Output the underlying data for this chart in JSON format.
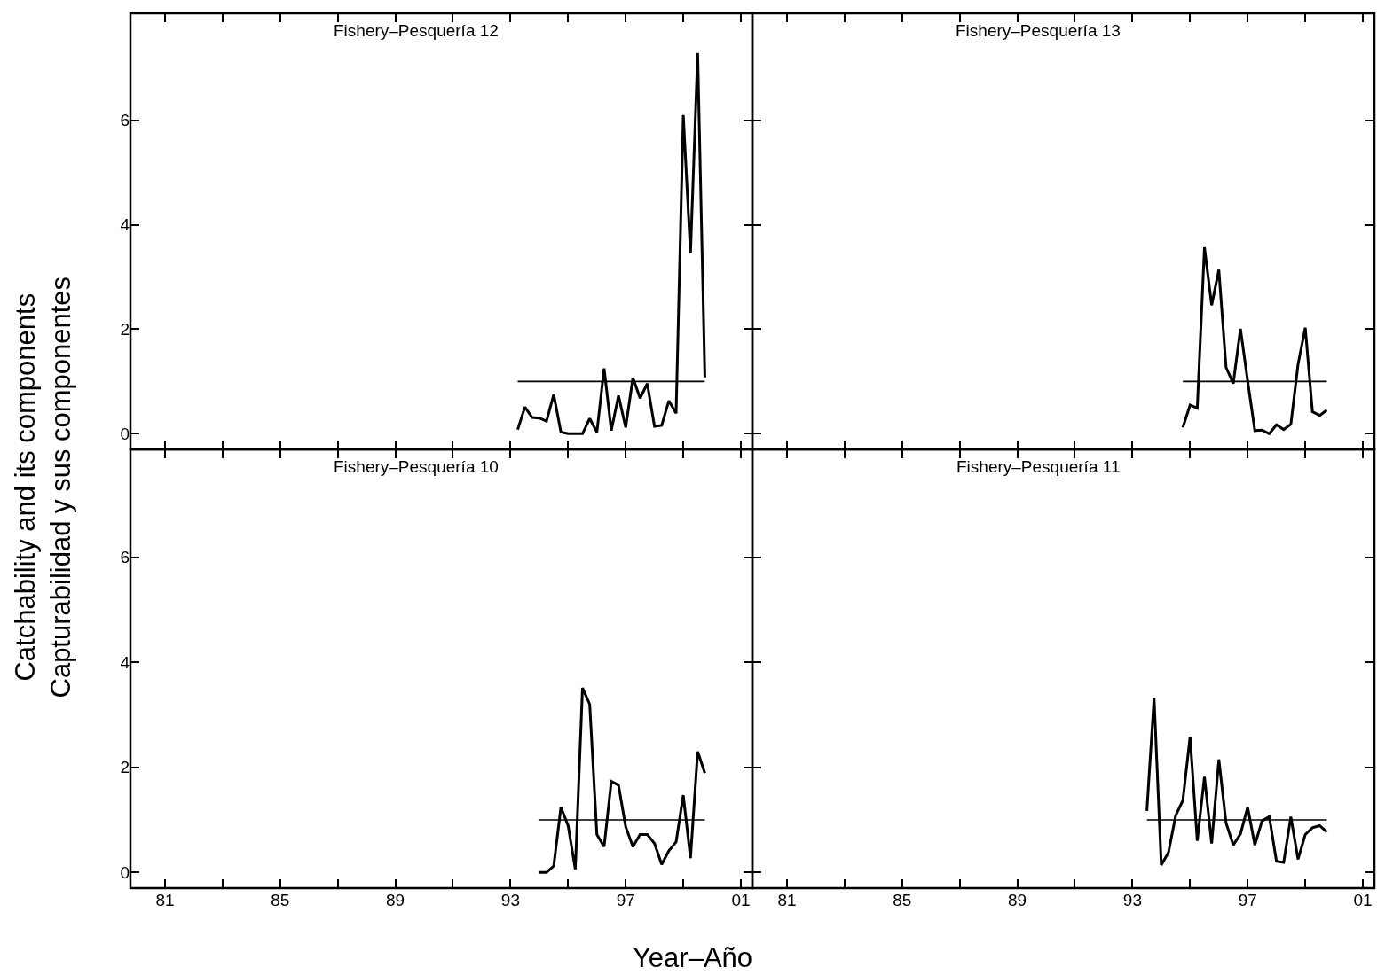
{
  "chart_data": [
    {
      "type": "line",
      "title": "Fishery–Pesquería 12",
      "ylabel": "Catchability and its components\nCapturabilidad y sus componentes",
      "tick_labels": "y",
      "xlim": [
        1979.8,
        2001.4
      ],
      "ylim": [
        -0.3,
        8.05
      ],
      "xticks": [
        {
          "value": 1981,
          "label": null
        },
        {
          "value": 1983,
          "label": null
        },
        {
          "value": 1985,
          "label": null
        },
        {
          "value": 1987,
          "label": null
        },
        {
          "value": 1989,
          "label": null
        },
        {
          "value": 1991,
          "label": null
        },
        {
          "value": 1993,
          "label": null
        },
        {
          "value": 1995,
          "label": null
        },
        {
          "value": 1997,
          "label": null
        },
        {
          "value": 1999,
          "label": null
        },
        {
          "value": 2001,
          "label": null
        }
      ],
      "yticks": [
        0,
        2,
        4,
        6
      ],
      "series": [
        {
          "color": "#000000",
          "x": [
            1993.25,
            1993.5,
            1993.75,
            1994.0,
            1994.25,
            1994.5,
            1994.75,
            1995.0,
            1995.25,
            1995.5,
            1995.75,
            1996.0,
            1996.25,
            1996.5,
            1996.75,
            1997.0,
            1997.25,
            1997.5,
            1997.75,
            1998.0,
            1998.25,
            1998.5,
            1998.75,
            1999.0,
            1999.25,
            1999.5,
            1999.75
          ],
          "values": [
            0.08,
            0.51,
            0.31,
            0.3,
            0.24,
            0.75,
            0.03,
            0.0,
            0.0,
            0.0,
            0.29,
            0.03,
            1.25,
            0.06,
            0.73,
            0.12,
            1.07,
            0.68,
            0.96,
            0.14,
            0.16,
            0.63,
            0.39,
            6.1,
            3.45,
            7.29,
            1.08
          ]
        },
        {
          "type": "line",
          "color": "#000000",
          "x": [
            1993.25,
            1999.75
          ],
          "values": [
            1,
            1
          ]
        }
      ]
    },
    {
      "type": "line",
      "title": "Fishery–Pesquería 13",
      "tick_labels": false,
      "xlim": [
        1979.8,
        2001.4
      ],
      "ylim": [
        -0.3,
        8.05
      ],
      "xticks": [
        {
          "value": 1981,
          "label": null
        },
        {
          "value": 1983,
          "label": null
        },
        {
          "value": 1985,
          "label": null
        },
        {
          "value": 1987,
          "label": null
        },
        {
          "value": 1989,
          "label": null
        },
        {
          "value": 1991,
          "label": null
        },
        {
          "value": 1993,
          "label": null
        },
        {
          "value": 1995,
          "label": null
        },
        {
          "value": 1997,
          "label": null
        },
        {
          "value": 1999,
          "label": null
        },
        {
          "value": 2001,
          "label": null
        }
      ],
      "yticks": [
        {
          "value": 0,
          "label": null
        },
        {
          "value": 2,
          "label": null
        },
        {
          "value": 4,
          "label": null
        },
        {
          "value": 6,
          "label": null
        }
      ],
      "series": [
        {
          "color": "#000000",
          "x": [
            1994.75,
            1995.0,
            1995.25,
            1995.5,
            1995.75,
            1996.0,
            1996.25,
            1996.5,
            1996.75,
            1997.0,
            1997.25,
            1997.5,
            1997.75,
            1998.0,
            1998.25,
            1998.5,
            1998.75,
            1999.0,
            1999.25,
            1999.5,
            1999.75
          ],
          "values": [
            0.12,
            0.55,
            0.49,
            3.57,
            2.46,
            3.14,
            1.27,
            0.96,
            2.01,
            1.01,
            0.06,
            0.07,
            0.0,
            0.17,
            0.08,
            0.18,
            1.33,
            2.03,
            0.42,
            0.35,
            0.45
          ]
        },
        {
          "type": "line",
          "color": "#000000",
          "x": [
            1994.75,
            1999.75
          ],
          "values": [
            1,
            1
          ]
        }
      ]
    },
    {
      "type": "line",
      "title": "Fishery–Pesquería 10",
      "xlabel": "Year–Año",
      "xlim": [
        1979.8,
        2001.4
      ],
      "ylim": [
        -0.3,
        8.05
      ],
      "xticks": [
        {
          "value": 1981,
          "label": "81"
        },
        {
          "value": 1983,
          "label": null
        },
        {
          "value": 1985,
          "label": "85"
        },
        {
          "value": 1987,
          "label": null
        },
        {
          "value": 1989,
          "label": "89"
        },
        {
          "value": 1991,
          "label": null
        },
        {
          "value": 1993,
          "label": "93"
        },
        {
          "value": 1995,
          "label": null
        },
        {
          "value": 1997,
          "label": "97"
        },
        {
          "value": 1999,
          "label": null
        },
        {
          "value": 2001,
          "label": "01"
        }
      ],
      "yticks": [
        0,
        2,
        4,
        6
      ],
      "series": [
        {
          "color": "#000000",
          "x": [
            1994.0,
            1994.25,
            1994.5,
            1994.75,
            1995.0,
            1995.25,
            1995.5,
            1995.75,
            1996.0,
            1996.25,
            1996.5,
            1996.75,
            1997.0,
            1997.25,
            1997.5,
            1997.75,
            1998.0,
            1998.25,
            1998.5,
            1998.75,
            1999.0,
            1999.25,
            1999.5,
            1999.75
          ],
          "values": [
            0.0,
            0.0,
            0.12,
            1.24,
            0.89,
            0.06,
            3.51,
            3.2,
            0.72,
            0.49,
            1.73,
            1.66,
            0.87,
            0.49,
            0.72,
            0.72,
            0.55,
            0.15,
            0.41,
            0.58,
            1.47,
            0.27,
            2.3,
            1.89
          ]
        },
        {
          "type": "line",
          "color": "#000000",
          "x": [
            1994.0,
            1999.75
          ],
          "values": [
            1,
            1
          ]
        }
      ]
    },
    {
      "type": "line",
      "title": "Fishery–Pesquería 11",
      "tick_labels": "x",
      "xlim": [
        1979.8,
        2001.4
      ],
      "ylim": [
        -0.3,
        8.05
      ],
      "xticks": [
        {
          "value": 1981,
          "label": "81"
        },
        {
          "value": 1983,
          "label": null
        },
        {
          "value": 1985,
          "label": "85"
        },
        {
          "value": 1987,
          "label": null
        },
        {
          "value": 1989,
          "label": "89"
        },
        {
          "value": 1991,
          "label": null
        },
        {
          "value": 1993,
          "label": "93"
        },
        {
          "value": 1995,
          "label": null
        },
        {
          "value": 1997,
          "label": "97"
        },
        {
          "value": 1999,
          "label": null
        },
        {
          "value": 2001,
          "label": "01"
        }
      ],
      "yticks": [
        {
          "value": 0,
          "label": null
        },
        {
          "value": 2,
          "label": null
        },
        {
          "value": 4,
          "label": null
        },
        {
          "value": 6,
          "label": null
        }
      ],
      "series": [
        {
          "color": "#000000",
          "x": [
            1993.5,
            1993.75,
            1994.0,
            1994.25,
            1994.5,
            1994.75,
            1995.0,
            1995.25,
            1995.5,
            1995.75,
            1996.0,
            1996.25,
            1996.5,
            1996.75,
            1997.0,
            1997.25,
            1997.5,
            1997.75,
            1998.0,
            1998.25,
            1998.5,
            1998.75,
            1999.0,
            1999.25,
            1999.5,
            1999.75
          ],
          "values": [
            1.17,
            3.32,
            0.14,
            0.38,
            1.08,
            1.37,
            2.58,
            0.6,
            1.82,
            0.55,
            2.15,
            0.94,
            0.52,
            0.73,
            1.24,
            0.52,
            0.98,
            1.06,
            0.21,
            0.19,
            1.06,
            0.25,
            0.72,
            0.85,
            0.89,
            0.77
          ]
        },
        {
          "type": "line",
          "color": "#000000",
          "x": [
            1993.5,
            1999.75
          ],
          "values": [
            1,
            1
          ]
        }
      ]
    }
  ]
}
